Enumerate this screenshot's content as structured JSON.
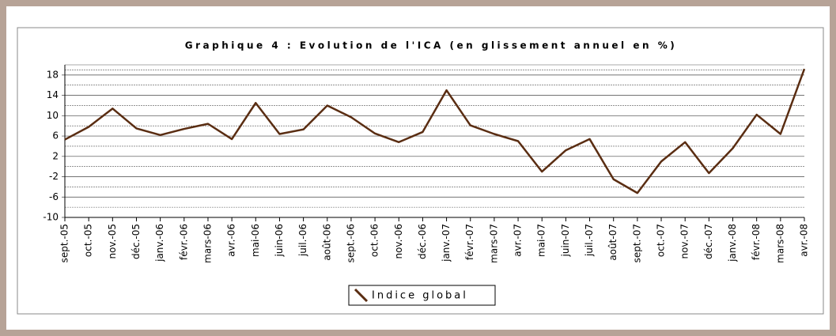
{
  "chart_data": {
    "type": "line",
    "title": "Graphique 4 : Evolution de l'ICA (en glissement annuel en %)",
    "categories": [
      "sept.-05",
      "oct.-05",
      "nov.-05",
      "déc.-05",
      "janv.-06",
      "févr.-06",
      "mars-06",
      "avr.-06",
      "mai-06",
      "juin-06",
      "juil.-06",
      "août-06",
      "sept.-06",
      "oct.-06",
      "nov.-06",
      "déc.-06",
      "janv.-07",
      "févr.-07",
      "mars-07",
      "avr.-07",
      "mai-07",
      "juin-07",
      "juil.-07",
      "août-07",
      "sept.-07",
      "oct.-07",
      "nov.-07",
      "déc.-07",
      "janv.-08",
      "févr.-08",
      "mars-08",
      "avr.-08"
    ],
    "series": [
      {
        "name": "Indice global",
        "color": "#5a2d12",
        "values": [
          5.3,
          7.8,
          11.4,
          7.5,
          6.2,
          7.4,
          8.4,
          5.4,
          12.5,
          6.4,
          7.3,
          12.0,
          9.7,
          6.5,
          4.8,
          6.8,
          15.0,
          8.1,
          6.4,
          5.0,
          -1.0,
          3.2,
          5.4,
          -2.5,
          -5.2,
          1.0,
          4.8,
          -1.3,
          3.6,
          10.2,
          6.4,
          19.2
        ]
      }
    ],
    "ylim": [
      -10,
      20
    ],
    "yticks": [
      -10,
      -6,
      -2,
      2,
      6,
      10,
      14,
      18
    ],
    "grid": true
  }
}
